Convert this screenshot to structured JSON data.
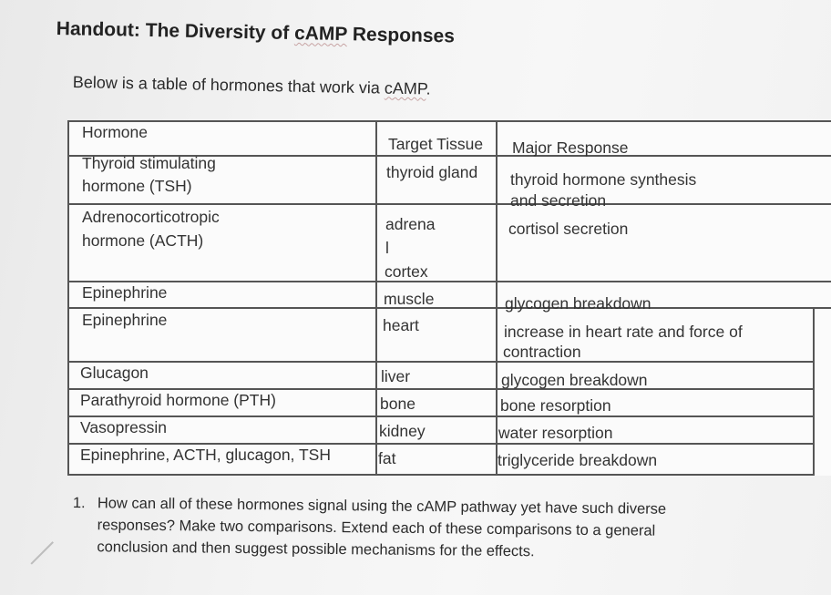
{
  "handout": {
    "title_prefix": "Handout: The Diversity of ",
    "title_term": "cAMP",
    "title_suffix": " Responses",
    "intro_prefix": "Below is a table of hormones that work via ",
    "intro_term": "cAMP",
    "intro_suffix": "."
  },
  "table": {
    "headers": {
      "hormone": "Hormone",
      "tissue": "Target Tissue",
      "response": "Major Response"
    },
    "rows": [
      {
        "hormone_l1": "Thyroid stimulating",
        "hormone_l2": "hormone (TSH)",
        "tissue": "thyroid gland",
        "response_l1": "thyroid hormone synthesis",
        "response_l2": "and secretion"
      },
      {
        "hormone_l1": "Adrenocorticotropic",
        "hormone_l2": "hormone (ACTH)",
        "tissue_l1": "adrena",
        "tissue_l2": "l",
        "tissue_l3": "cortex",
        "response": "cortisol secretion"
      },
      {
        "hormone": "Epinephrine",
        "tissue": "muscle",
        "response": "glycogen breakdown"
      },
      {
        "hormone": "Epinephrine",
        "tissue": "heart",
        "response_l1": "increase in heart rate and force of",
        "response_l2": "contraction"
      },
      {
        "hormone": "Glucagon",
        "tissue": "liver",
        "response": "glycogen breakdown"
      },
      {
        "hormone": "Parathyroid hormone (PTH)",
        "tissue": "bone",
        "response": "bone resorption"
      },
      {
        "hormone": "Vasopressin",
        "tissue": "kidney",
        "response": "water resorption"
      },
      {
        "hormone": "Epinephrine, ACTH, glucagon, TSH",
        "tissue": "fat",
        "response": "triglyceride breakdown"
      }
    ]
  },
  "question": {
    "number": "1.",
    "text": "How can all of these hormones signal using the cAMP pathway yet have such diverse\nresponses? Make two comparisons. Extend each of these comparisons to a general\nconclusion and then suggest possible mechanisms for the effects."
  }
}
